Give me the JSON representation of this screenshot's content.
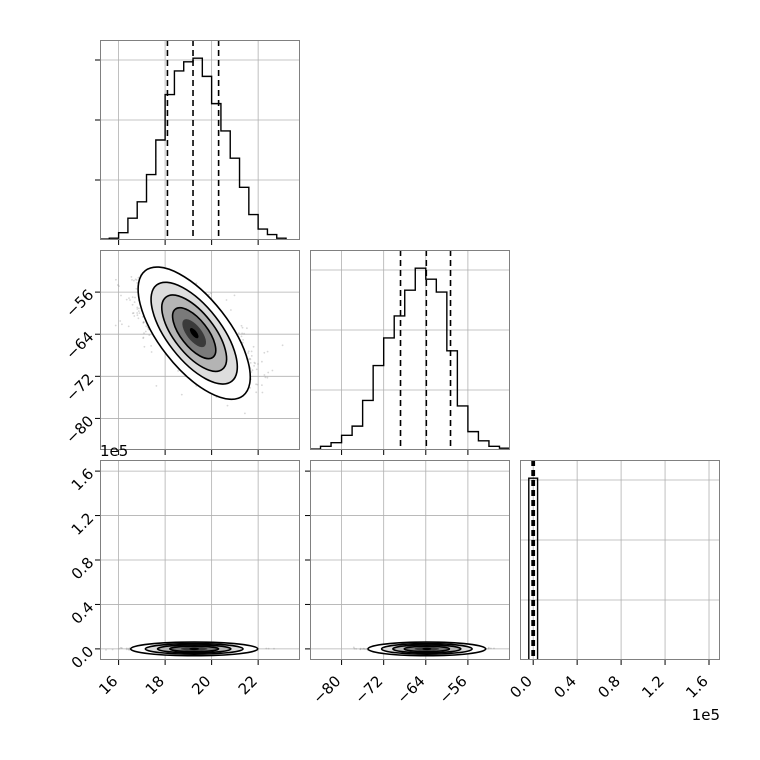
{
  "chart_data": {
    "type": "corner",
    "grid": true,
    "colors": {
      "line": "#000000",
      "grid": "#b0b0b0",
      "frame": "#808080",
      "points": "#8c8c8c",
      "density_fill": [
        "#ffffff",
        "#dddddd",
        "#b4b4b4",
        "#7a7a7a",
        "#3a3a3a",
        "#000000"
      ]
    },
    "parameters": [
      {
        "xlim": [
          15.2,
          23.8
        ],
        "ticks": [
          16,
          18,
          20,
          22
        ],
        "tick_labels": [
          "16",
          "18",
          "20",
          "22"
        ],
        "offset_label": "",
        "quantiles": [
          18.1,
          19.2,
          20.3
        ],
        "hist_edges": [
          15.2,
          15.6,
          16.0,
          16.4,
          16.8,
          17.2,
          17.6,
          18.0,
          18.4,
          18.8,
          19.2,
          19.6,
          20.0,
          20.4,
          20.8,
          21.2,
          21.6,
          22.0,
          22.4,
          22.8,
          23.2
        ],
        "hist_counts": [
          0.005,
          0.01,
          0.04,
          0.12,
          0.21,
          0.36,
          0.55,
          0.8,
          0.93,
          0.98,
          1.0,
          0.9,
          0.75,
          0.6,
          0.45,
          0.29,
          0.14,
          0.06,
          0.03,
          0.01
        ]
      },
      {
        "xlim": [
          -86,
          -48
        ],
        "ticks": [
          -80,
          -72,
          -64,
          -56
        ],
        "tick_labels": [
          "−80",
          "−72",
          "−64",
          "−56"
        ],
        "offset_label": "1e5",
        "quantiles": [
          -68.8,
          -63.9,
          -59.3
        ],
        "hist_edges": [
          -86,
          -84,
          -82,
          -80,
          -78,
          -76,
          -74,
          -72,
          -70,
          -68,
          -66,
          -64,
          -62,
          -60,
          -58,
          -56,
          -54,
          -52,
          -50,
          -48
        ],
        "hist_counts": [
          0.005,
          0.02,
          0.04,
          0.08,
          0.13,
          0.27,
          0.46,
          0.61,
          0.73,
          0.87,
          0.99,
          0.93,
          0.86,
          0.54,
          0.24,
          0.1,
          0.05,
          0.02,
          0.01
        ]
      },
      {
        "xlim": [
          -0.12,
          1.7
        ],
        "ticks": [
          0.0,
          0.4,
          0.8,
          1.2,
          1.6
        ],
        "tick_labels": [
          "0.0",
          "0.4",
          "0.8",
          "1.2",
          "1.6"
        ],
        "offset_label": "1e5",
        "quantiles": [
          -0.01,
          0.0,
          0.01
        ],
        "hist_edges": [
          -0.04,
          0.04
        ],
        "hist_counts": [
          1.6
        ]
      }
    ],
    "hist_ylim_frac": [
      0,
      1.1
    ],
    "pairs": [
      {
        "row": 1,
        "col": 0,
        "ylim": [
          -86,
          -48
        ],
        "yticks": [
          -80,
          -72,
          -64,
          -56
        ],
        "ytick_labels": [
          "−80",
          "−72",
          "−64",
          "−56"
        ],
        "center": [
          19.25,
          -63.8
        ],
        "sx": 1.05,
        "sy": 4.3,
        "rho": -0.62,
        "n_points": 2600
      },
      {
        "row": 2,
        "col": 0,
        "ylim": [
          -0.1,
          1.7
        ],
        "yticks": [
          0.0,
          0.4,
          0.8,
          1.2,
          1.6
        ],
        "ytick_labels": [
          "0.0",
          "0.4",
          "0.8",
          "1.2",
          "1.6"
        ],
        "center": [
          19.25,
          0.0
        ],
        "sx": 1.05,
        "sy": 0.006,
        "rho": 0.0,
        "n_points": 1500
      },
      {
        "row": 2,
        "col": 1,
        "ylim": [
          -0.1,
          1.7
        ],
        "yticks": [
          0.0,
          0.4,
          0.8,
          1.2,
          1.6
        ],
        "ytick_labels": [
          "0.0",
          "0.4",
          "0.8",
          "1.2",
          "1.6"
        ],
        "center": [
          -63.8,
          0.0
        ],
        "sx": 4.3,
        "sy": 0.006,
        "rho": 0.0,
        "n_points": 1500
      }
    ]
  }
}
